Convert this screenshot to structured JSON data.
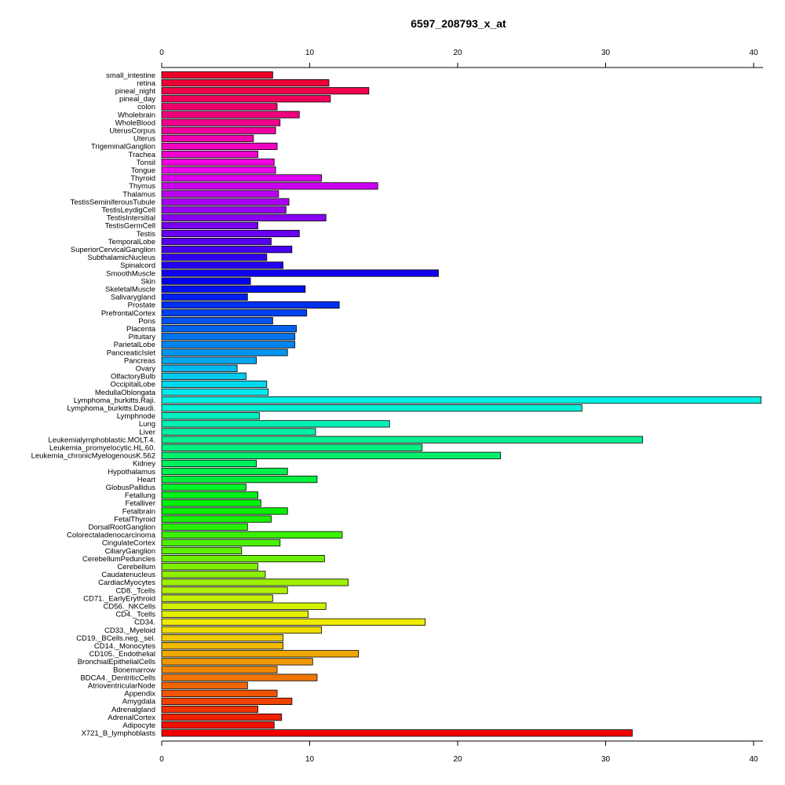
{
  "chart_data": {
    "type": "bar",
    "orientation": "horizontal",
    "title": "6597_208793_x_at",
    "xlabel": "",
    "ylabel": "",
    "xlim": [
      0,
      40
    ],
    "ticks": [
      0,
      10,
      20,
      30,
      40
    ],
    "grid": false,
    "legend": "none",
    "categories": [
      "small_intestine",
      "retina",
      "pineal_night",
      "pineal_day",
      "colon",
      "Wholebrain",
      "WholeBlood",
      "UterusCorpus",
      "Uterus",
      "TrigeminalGanglion",
      "Trachea",
      "Tonsil",
      "Tongue",
      "Thyroid",
      "Thymus",
      "Thalamus",
      "TestisSeminiferousTubule",
      "TestisLeydigCell",
      "TestisIntersitial",
      "TestisGermCell",
      "Testis",
      "TemporalLobe",
      "SuperiorCervicalGanglion",
      "SubthalamicNucleus",
      "Spinalcord",
      "SmoothMuscle",
      "Skin",
      "SkeletalMuscle",
      "Salivarygland",
      "Prostate",
      "PrefrontalCortex",
      "Pons",
      "Placenta",
      "Pituitary",
      "ParietalLobe",
      "PancreaticIslet",
      "Pancreas",
      "Ovary",
      "OlfactoryBulb",
      "OccipitalLobe",
      "MedullaOblongata",
      "Lymphoma_burkitts.Raji.",
      "Lymphoma_burkitts.Daudi.",
      "Lymphnode",
      "Lung",
      "Liver",
      "Leukemialymphoblastic.MOLT.4.",
      "Leukemia_promyelocytic.HL.60.",
      "Leukemia_chronicMyelogenousK.562",
      "Kidney",
      "Hypothalamus",
      "Heart",
      "GlobusPallidus",
      "Fetallung",
      "Fetalliver",
      "Fetalbrain",
      "FetalThyroid",
      "DorsalRootGanglion",
      "Colorectaladenocarcinoma",
      "CingulateCortex",
      "CiliaryGanglion",
      "CerebellumPeduncles",
      "Cerebellum",
      "Caudatenucleus",
      "CardiacMyocytes",
      "CD8._Tcells",
      "CD71._EarlyErythroid",
      "CD56._NKCells",
      "CD4._Tcells",
      "CD34.",
      "CD33._Myeloid",
      "CD19._BCells.neg._sel.",
      "CD14._Monocytes",
      "CD105._Endothelial",
      "BronchialEpithelialCells",
      "Bonemarrow",
      "BDCA4._DentriticCells",
      "AtrioventricularNode",
      "Appendix",
      "Amygdala",
      "Adrenalgland",
      "AdrenalCortex",
      "Adipocyte",
      "X721_B_lymphoblasts"
    ],
    "values": [
      7.5,
      11.3,
      14.0,
      11.4,
      7.8,
      9.3,
      8.0,
      7.7,
      6.2,
      7.8,
      6.5,
      7.6,
      7.7,
      10.8,
      14.6,
      7.9,
      8.6,
      8.4,
      11.1,
      6.5,
      9.3,
      7.4,
      8.8,
      7.1,
      8.2,
      18.7,
      6.0,
      9.7,
      5.8,
      12.0,
      9.8,
      7.5,
      9.1,
      9.0,
      9.0,
      8.5,
      6.4,
      5.1,
      5.7,
      7.1,
      7.2,
      40.5,
      28.4,
      6.6,
      15.4,
      10.4,
      32.5,
      17.6,
      22.9,
      6.4,
      8.5,
      10.5,
      5.7,
      6.5,
      6.7,
      8.5,
      7.4,
      5.8,
      12.2,
      8.0,
      5.4,
      11.0,
      6.5,
      7.0,
      12.6,
      8.5,
      7.5,
      11.1,
      9.9,
      17.8,
      10.8,
      8.2,
      8.2,
      13.3,
      10.2,
      7.8,
      10.5,
      5.8,
      7.8,
      8.8,
      6.5,
      8.1,
      7.6,
      31.8
    ]
  }
}
